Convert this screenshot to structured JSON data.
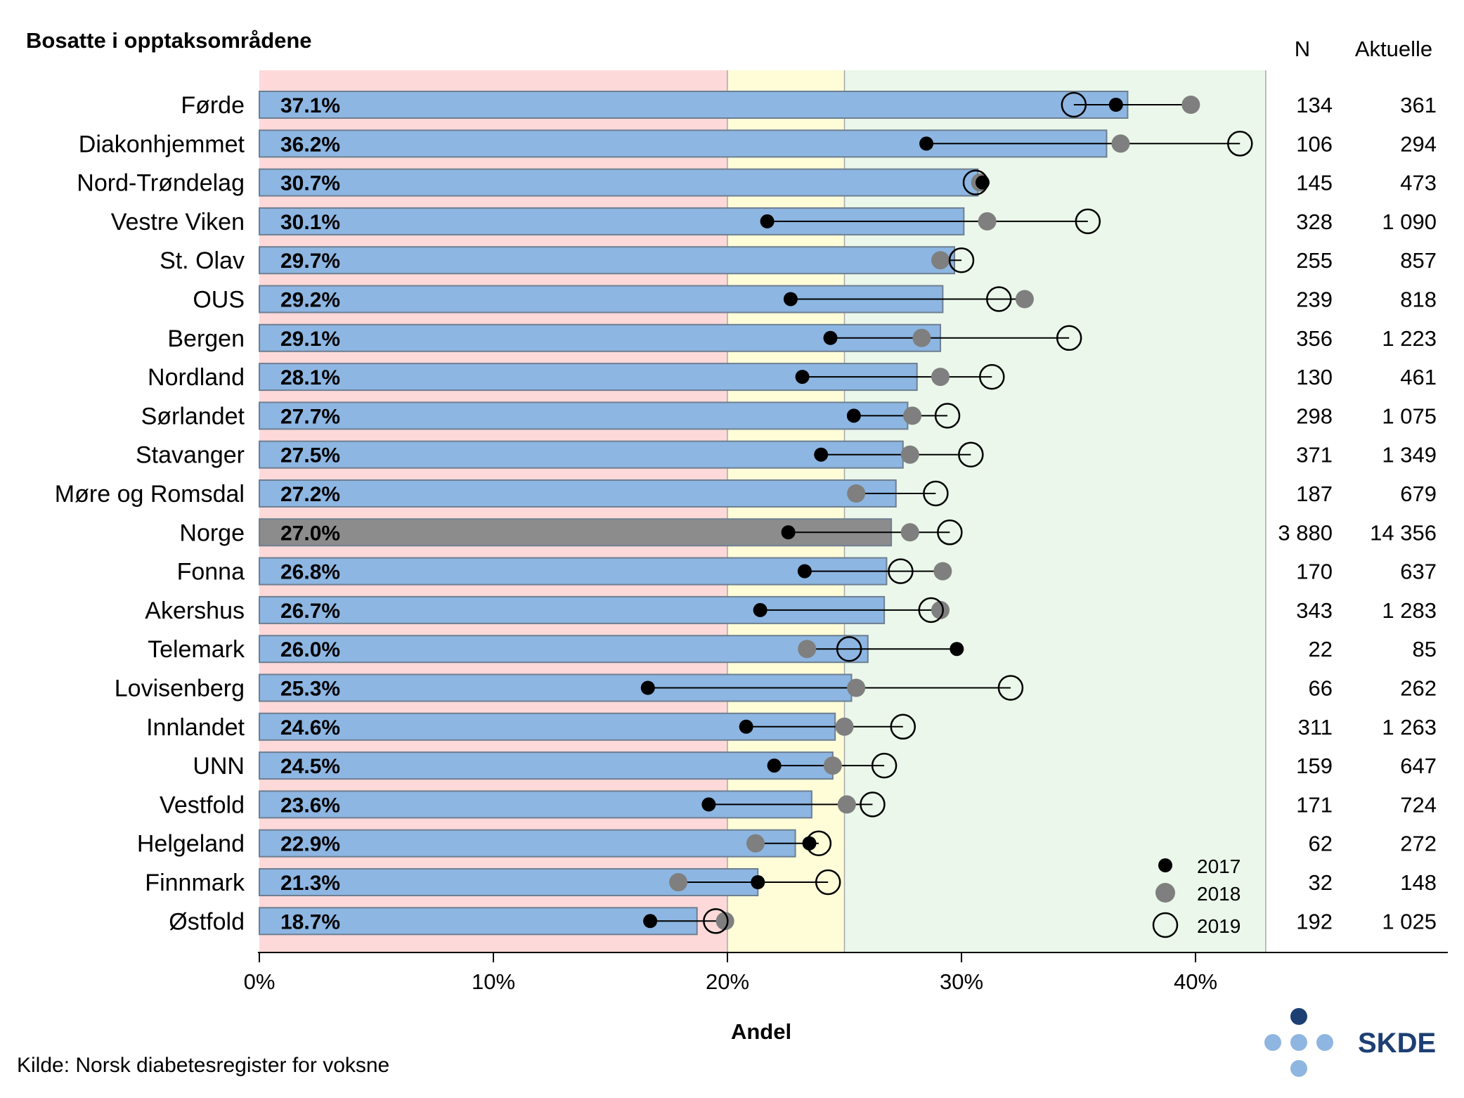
{
  "chart_data": {
    "type": "bar",
    "title": "Bosatte i opptaksområdene",
    "xlabel": "Andel",
    "ylabel": "",
    "xlim": [
      0,
      50
    ],
    "x_ticks": [
      0,
      10,
      20,
      30,
      40
    ],
    "x_tick_labels": [
      "0%",
      "10%",
      "20%",
      "30%",
      "40%"
    ],
    "target_zones": [
      {
        "from": 0,
        "to": 20,
        "color": "#fdd9d9"
      },
      {
        "from": 20,
        "to": 25,
        "color": "#fefdd8"
      },
      {
        "from": 25,
        "to": 43,
        "color": "#eaf7ea"
      }
    ],
    "column_headers": {
      "n": "N",
      "aktuelle": "Aktuelle"
    },
    "categories": [
      "Førde",
      "Diakonhjemmet",
      "Nord-Trøndelag",
      "Vestre Viken",
      "St. Olav",
      "OUS",
      "Bergen",
      "Nordland",
      "Sørlandet",
      "Stavanger",
      "Møre og Romsdal",
      "Norge",
      "Fonna",
      "Akershus",
      "Telemark",
      "Lovisenberg",
      "Innlandet",
      "UNN",
      "Vestfold",
      "Helgeland",
      "Finnmark",
      "Østfold"
    ],
    "highlight_category": "Norge",
    "series": [
      {
        "name": "Andel",
        "values": [
          37.1,
          36.2,
          30.7,
          30.1,
          29.7,
          29.2,
          29.1,
          28.1,
          27.7,
          27.5,
          27.2,
          27.0,
          26.8,
          26.7,
          26.0,
          25.3,
          24.6,
          24.5,
          23.6,
          22.9,
          21.3,
          18.7
        ]
      },
      {
        "name": "2017",
        "values": [
          36.6,
          28.5,
          30.9,
          21.7,
          null,
          22.7,
          24.4,
          23.2,
          25.4,
          24.0,
          null,
          22.6,
          23.3,
          21.4,
          29.8,
          16.6,
          20.8,
          22.0,
          19.2,
          23.5,
          21.3,
          16.7
        ]
      },
      {
        "name": "2018",
        "values": [
          39.8,
          36.8,
          30.8,
          31.1,
          29.1,
          32.7,
          28.3,
          29.1,
          27.9,
          27.8,
          25.5,
          27.8,
          29.2,
          29.1,
          23.4,
          25.5,
          25.0,
          24.5,
          25.1,
          21.2,
          17.9,
          19.9
        ]
      },
      {
        "name": "2019",
        "values": [
          34.8,
          41.9,
          30.6,
          35.4,
          30.0,
          31.6,
          34.6,
          31.3,
          29.4,
          30.4,
          28.9,
          29.5,
          27.4,
          28.7,
          25.2,
          32.1,
          27.5,
          26.7,
          26.2,
          23.9,
          24.3,
          19.5
        ]
      }
    ],
    "bar_labels": [
      "37.1%",
      "36.2%",
      "30.7%",
      "30.1%",
      "29.7%",
      "29.2%",
      "29.1%",
      "28.1%",
      "27.7%",
      "27.5%",
      "27.2%",
      "27.0%",
      "26.8%",
      "26.7%",
      "26.0%",
      "25.3%",
      "24.6%",
      "24.5%",
      "23.6%",
      "22.9%",
      "21.3%",
      "18.7%"
    ],
    "n": [
      "134",
      "106",
      "145",
      "328",
      "255",
      "239",
      "356",
      "130",
      "298",
      "371",
      "187",
      "3 880",
      "170",
      "343",
      "22",
      "66",
      "311",
      "159",
      "171",
      "62",
      "32",
      "192"
    ],
    "aktuelle": [
      "361",
      "294",
      "473",
      "1 090",
      "857",
      "818",
      "1 223",
      "461",
      "1 075",
      "1 349",
      "679",
      "14 356",
      "637",
      "1 283",
      "85",
      "262",
      "1 263",
      "647",
      "724",
      "272",
      "148",
      "1 025"
    ],
    "legend": {
      "position": "bottom-right",
      "entries": [
        "2017",
        "2018",
        "2019"
      ]
    },
    "source": "Kilde: Norsk diabetesregister for voksne",
    "colors": {
      "bar": "#8db6e2",
      "bar_border": "#6e7f91",
      "highlight_bar": "#8c8c8c",
      "dot_2017": "#000000",
      "dot_2018": "#7f7f7f",
      "ring_2019": "#000000"
    }
  },
  "logo": {
    "text": "SKDE",
    "color": "#1d3f73",
    "dot_dark": "#1d3f73",
    "dot_light": "#8fb6e0"
  }
}
